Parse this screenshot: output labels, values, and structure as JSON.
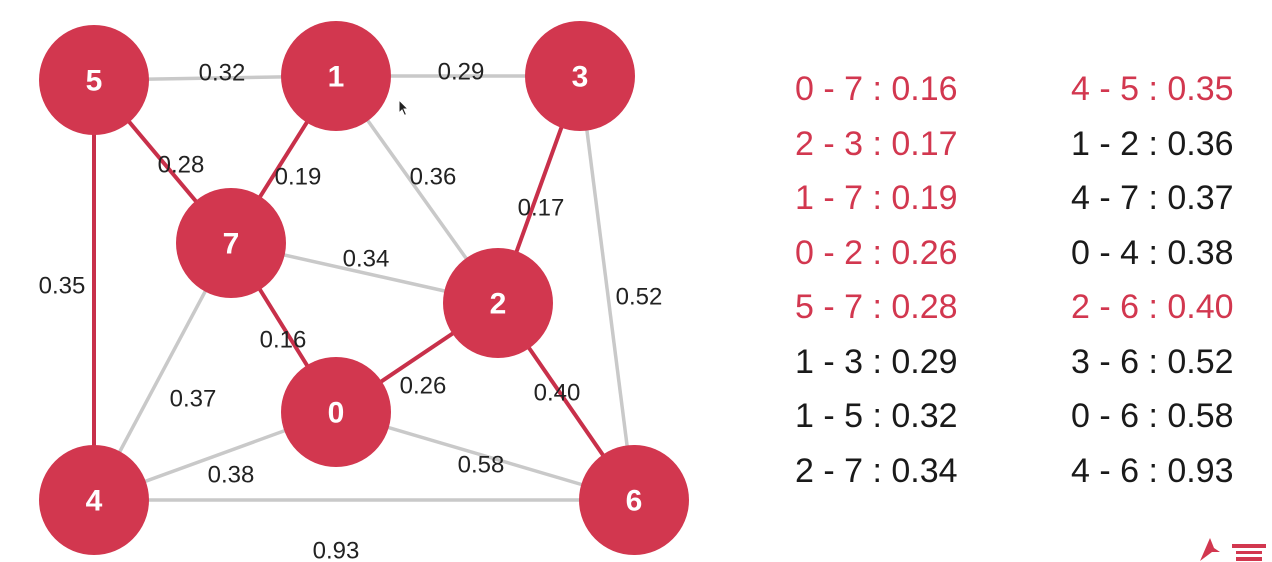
{
  "colors": {
    "node": "#d2374f",
    "tree_edge": "#c8304a",
    "other_edge": "#c9c9c9",
    "highlight_text": "#d2374f",
    "normal_text": "#1a1a1a"
  },
  "nodes": [
    {
      "id": "0",
      "label": "0"
    },
    {
      "id": "1",
      "label": "1"
    },
    {
      "id": "2",
      "label": "2"
    },
    {
      "id": "3",
      "label": "3"
    },
    {
      "id": "4",
      "label": "4"
    },
    {
      "id": "5",
      "label": "5"
    },
    {
      "id": "6",
      "label": "6"
    },
    {
      "id": "7",
      "label": "7"
    }
  ],
  "edges": [
    {
      "from": "0",
      "to": "7",
      "weight": "0.16",
      "in_tree": true
    },
    {
      "from": "2",
      "to": "3",
      "weight": "0.17",
      "in_tree": true
    },
    {
      "from": "1",
      "to": "7",
      "weight": "0.19",
      "in_tree": true
    },
    {
      "from": "0",
      "to": "2",
      "weight": "0.26",
      "in_tree": true
    },
    {
      "from": "5",
      "to": "7",
      "weight": "0.28",
      "in_tree": true
    },
    {
      "from": "1",
      "to": "3",
      "weight": "0.29",
      "in_tree": false
    },
    {
      "from": "1",
      "to": "5",
      "weight": "0.32",
      "in_tree": false
    },
    {
      "from": "2",
      "to": "7",
      "weight": "0.34",
      "in_tree": false
    },
    {
      "from": "4",
      "to": "5",
      "weight": "0.35",
      "in_tree": true
    },
    {
      "from": "1",
      "to": "2",
      "weight": "0.36",
      "in_tree": false
    },
    {
      "from": "4",
      "to": "7",
      "weight": "0.37",
      "in_tree": false
    },
    {
      "from": "0",
      "to": "4",
      "weight": "0.38",
      "in_tree": false
    },
    {
      "from": "2",
      "to": "6",
      "weight": "0.40",
      "in_tree": true
    },
    {
      "from": "3",
      "to": "6",
      "weight": "0.52",
      "in_tree": false
    },
    {
      "from": "0",
      "to": "6",
      "weight": "0.58",
      "in_tree": false
    },
    {
      "from": "4",
      "to": "6",
      "weight": "0.93",
      "in_tree": false
    }
  ],
  "edge_list": [
    {
      "text": "0 - 7 : 0.16",
      "highlighted": true
    },
    {
      "text": "2 - 3 : 0.17",
      "highlighted": true
    },
    {
      "text": "1 - 7 : 0.19",
      "highlighted": true
    },
    {
      "text": "0 - 2 : 0.26",
      "highlighted": true
    },
    {
      "text": "5 - 7 : 0.28",
      "highlighted": true
    },
    {
      "text": "1 - 3 : 0.29",
      "highlighted": false
    },
    {
      "text": "1 - 5 : 0.32",
      "highlighted": false
    },
    {
      "text": "2 - 7 : 0.34",
      "highlighted": false
    },
    {
      "text": "4 - 5 : 0.35",
      "highlighted": true
    },
    {
      "text": "1 - 2 : 0.36",
      "highlighted": false
    },
    {
      "text": "4 - 7 : 0.37",
      "highlighted": false
    },
    {
      "text": "0 - 4 : 0.38",
      "highlighted": false
    },
    {
      "text": "2 - 6 : 0.40",
      "highlighted": true
    },
    {
      "text": "3 - 6 : 0.52",
      "highlighted": false
    },
    {
      "text": "0 - 6 : 0.58",
      "highlighted": false
    },
    {
      "text": "4 - 6 : 0.93",
      "highlighted": false
    }
  ]
}
